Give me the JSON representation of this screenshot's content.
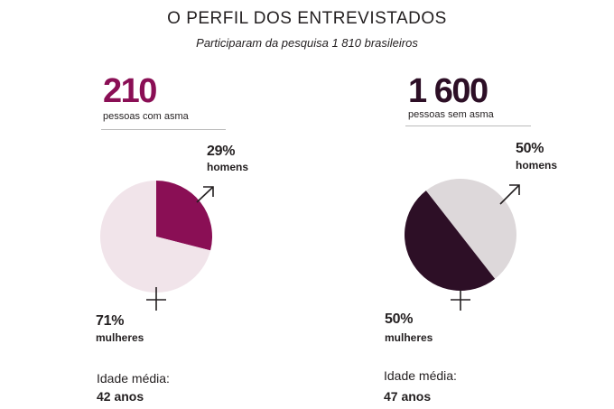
{
  "title": "O PERFIL DOS ENTREVISTADOS",
  "subtitle": "Participaram da pesquisa  1 810 brasileiros",
  "groups": [
    {
      "count": "210",
      "count_label": "pessoas com asma",
      "men_value": "29%",
      "men_label": "homens",
      "women_value": "71%",
      "women_label": "mulheres",
      "age_label": "Idade média:",
      "age_value": "42 anos"
    },
    {
      "count": "1 600",
      "count_label": "pessoas sem asma",
      "men_value": "50%",
      "men_label": "homens",
      "women_value": "50%",
      "women_label": "mulheres",
      "age_label": "Idade média:",
      "age_value": "47 anos"
    }
  ],
  "icons": [
    "male-symbol-icon",
    "female-symbol-icon"
  ],
  "colors": {
    "asthma_men": "#8a0f55",
    "asthma_women": "#f1e4ea",
    "no_asthma_men": "#ddd8da",
    "no_asthma_women": "#2d0f26",
    "text": "#231f20"
  },
  "chart_data": [
    {
      "type": "pie",
      "title": "210 pessoas com asma",
      "categories": [
        "homens",
        "mulheres"
      ],
      "values": [
        29,
        71
      ]
    },
    {
      "type": "pie",
      "title": "1 600 pessoas sem asma",
      "categories": [
        "homens",
        "mulheres"
      ],
      "values": [
        50,
        50
      ]
    }
  ]
}
